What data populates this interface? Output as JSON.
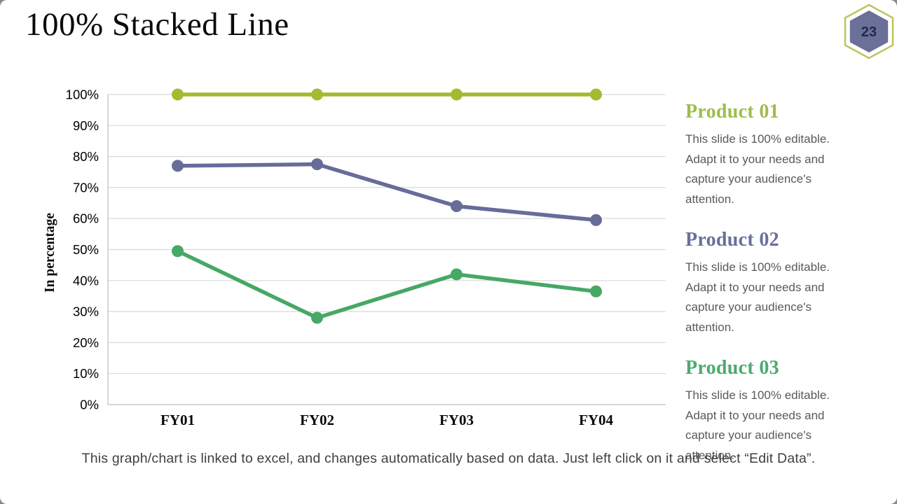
{
  "slide": {
    "title": "100% Stacked Line",
    "page_number": "23",
    "caption": "This graph/chart is linked to excel, and changes automatically based on data. Just left click on it and select “Edit Data”."
  },
  "colors": {
    "product01": "#a6ba30",
    "product02": "#676c98",
    "product03": "#46a865",
    "gridline": "#d9d9d9",
    "axis_line": "#bfbfbf",
    "tick_label": "#000000",
    "hexagon_fill": "#6b7099",
    "hexagon_outline": "#b9c65a",
    "badge_number": "#1c2b4d",
    "body_text": "#595959",
    "caption_text": "#3f3f3f"
  },
  "chart_data": {
    "type": "line",
    "title": "",
    "categories": [
      "FY01",
      "FY02",
      "FY03",
      "FY04"
    ],
    "series": [
      {
        "name": "Product 01",
        "color": "#a6ba30",
        "values": [
          100,
          100,
          100,
          100
        ]
      },
      {
        "name": "Product 02",
        "color": "#676c98",
        "values": [
          77,
          77.5,
          64,
          59.5
        ]
      },
      {
        "name": "Product 03",
        "color": "#46a865",
        "values": [
          49.5,
          28,
          42,
          36.5
        ]
      }
    ],
    "xlabel": "",
    "ylabel": "In percentage",
    "ylim": [
      0,
      100
    ],
    "ytick_step": 10,
    "ytick_suffix": "%",
    "grid": true,
    "legend_position": "right",
    "marker": "circle"
  },
  "legend": {
    "items": [
      {
        "heading": "Product 01",
        "color": "#9fbc4a",
        "description": "This slide is 100% editable. Adapt it to your needs and capture your audience's attention."
      },
      {
        "heading": "Product 02",
        "color": "#6a6f9b",
        "description": "This slide is 100% editable. Adapt it to your needs and capture your audience's attention."
      },
      {
        "heading": "Product 03",
        "color": "#4caa70",
        "description": "This slide is 100% editable. Adapt it to your needs and capture your audience's attention."
      }
    ]
  }
}
